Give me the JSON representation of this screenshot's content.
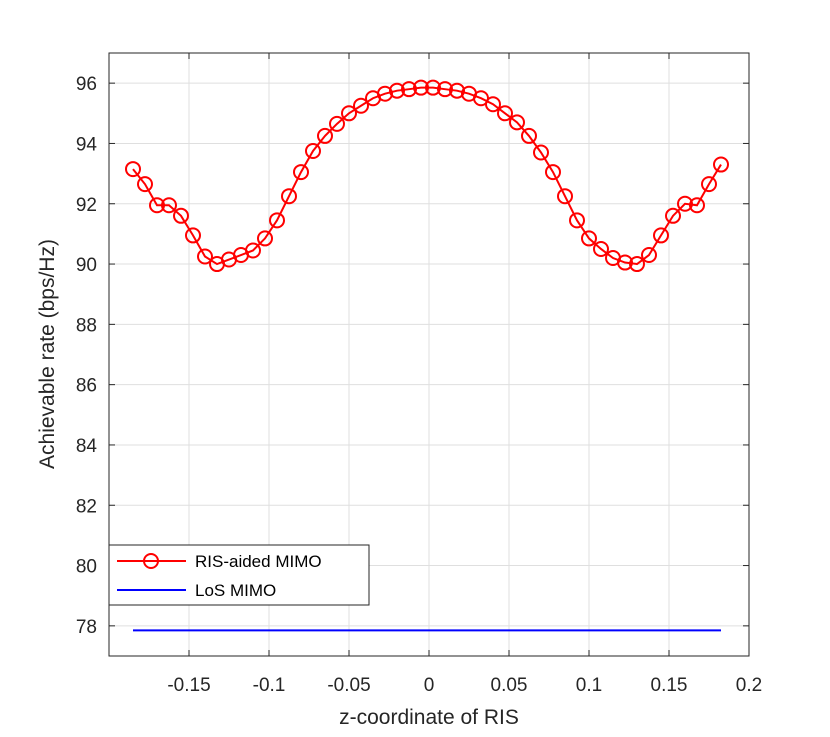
{
  "chart_data": {
    "type": "line",
    "title": "",
    "xlabel": "z-coordinate of RIS",
    "ylabel": "Achievable rate (bps/Hz)",
    "xlim": [
      -0.2,
      0.2
    ],
    "ylim": [
      77,
      97
    ],
    "xticks": [
      -0.15,
      -0.1,
      -0.05,
      0,
      0.05,
      0.1,
      0.15,
      0.2
    ],
    "xtick_labels": [
      "-0.15",
      "-0.1",
      "-0.05",
      "0",
      "0.05",
      "0.1",
      "0.15",
      "0.2"
    ],
    "yticks": [
      78,
      80,
      82,
      84,
      86,
      88,
      90,
      92,
      94,
      96
    ],
    "ytick_labels": [
      "78",
      "80",
      "82",
      "84",
      "86",
      "88",
      "90",
      "92",
      "94",
      "96"
    ],
    "grid": true,
    "legend_position": "bottom-left",
    "series": [
      {
        "name": "RIS-aided MIMO",
        "color": "#ff0000",
        "marker": "circle",
        "x": [
          -0.185,
          -0.1775,
          -0.17,
          -0.1625,
          -0.155,
          -0.1475,
          -0.14,
          -0.1325,
          -0.125,
          -0.1175,
          -0.11,
          -0.1025,
          -0.095,
          -0.0875,
          -0.08,
          -0.0725,
          -0.065,
          -0.0575,
          -0.05,
          -0.0425,
          -0.035,
          -0.0275,
          -0.02,
          -0.0125,
          -0.005,
          0.0025,
          0.01,
          0.0175,
          0.025,
          0.0325,
          0.04,
          0.0475,
          0.055,
          0.0625,
          0.07,
          0.0775,
          0.085,
          0.0925,
          0.1,
          0.1075,
          0.115,
          0.1225,
          0.13,
          0.1375,
          0.145,
          0.1525,
          0.16,
          0.1675,
          0.175,
          0.1825
        ],
        "values": [
          93.15,
          92.65,
          91.95,
          91.95,
          91.6,
          90.95,
          90.25,
          90.0,
          90.15,
          90.3,
          90.45,
          90.85,
          91.45,
          92.25,
          93.05,
          93.75,
          94.25,
          94.65,
          95.0,
          95.25,
          95.5,
          95.65,
          95.75,
          95.8,
          95.85,
          95.85,
          95.8,
          95.75,
          95.65,
          95.5,
          95.3,
          95.0,
          94.7,
          94.25,
          93.7,
          93.05,
          92.25,
          91.45,
          90.85,
          90.5,
          90.2,
          90.05,
          90.0,
          90.3,
          90.95,
          91.6,
          92.0,
          91.95,
          92.65,
          93.3
        ]
      },
      {
        "name": "LoS MIMO",
        "color": "#0000ff",
        "marker": "none",
        "x": [
          -0.185,
          0.1825
        ],
        "values": [
          77.85,
          77.85
        ]
      }
    ]
  }
}
